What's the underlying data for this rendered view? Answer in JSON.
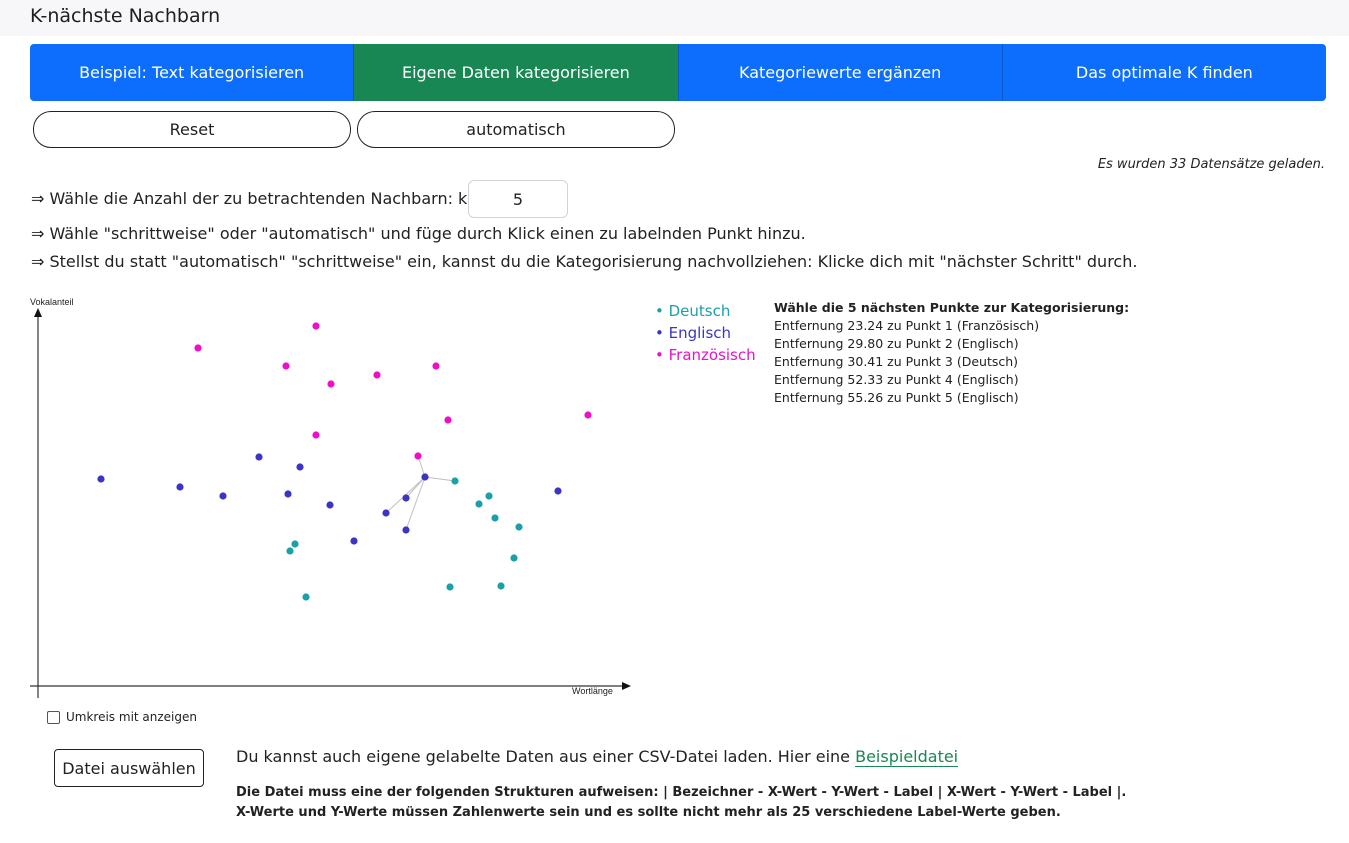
{
  "app": {
    "title": "K-nächste Nachbarn"
  },
  "tabs": [
    {
      "label": "Beispiel: Text kategorisieren"
    },
    {
      "label": "Eigene Daten kategorisieren"
    },
    {
      "label": "Kategoriewerte ergänzen"
    },
    {
      "label": "Das optimale K finden"
    }
  ],
  "buttons": {
    "reset": "Reset",
    "mode": "automatisch"
  },
  "status": "Es wurden 33 Datensätze geladen.",
  "instructions": {
    "k_prompt": "⇒ Wähle die Anzahl der zu betrachtenden Nachbarn: k",
    "k_value": "5",
    "step1": "⇒ Wähle \"schrittweise\" oder \"automatisch\" und füge durch Klick einen zu labelnden Punkt hinzu.",
    "step2": "⇒ Stellst du statt \"automatisch\" \"schrittweise\" ein, kannst du die Kategorisierung nachvollziehen: Klicke dich mit \"nächster Schritt\" durch."
  },
  "colors": {
    "Deutsch": "#1aa0a8",
    "Englisch": "#3a35c4",
    "Französisch": "#ee10c8"
  },
  "chart_data": {
    "type": "scatter",
    "xlabel": "Wortlänge",
    "ylabel": "Vokalanteil",
    "xlim": [
      0,
      600
    ],
    "ylim": [
      0,
      390
    ],
    "series": [
      {
        "name": "Deutsch",
        "color": "#1aa0a8",
        "points": [
          [
            417,
            205
          ],
          [
            441,
            182
          ],
          [
            451,
            190
          ],
          [
            457,
            168
          ],
          [
            481,
            159
          ],
          [
            476,
            128
          ],
          [
            257,
            142
          ],
          [
            252,
            135
          ],
          [
            268,
            89
          ],
          [
            412,
            99
          ],
          [
            463,
            100
          ]
        ]
      },
      {
        "name": "Englisch",
        "color": "#3a35c4",
        "points": [
          [
            63,
            207
          ],
          [
            142,
            199
          ],
          [
            185,
            190
          ],
          [
            221,
            229
          ],
          [
            250,
            192
          ],
          [
            262,
            219
          ],
          [
            292,
            181
          ],
          [
            316,
            145
          ],
          [
            348,
            173
          ],
          [
            368,
            188
          ],
          [
            368,
            156
          ],
          [
            520,
            195
          ]
        ]
      },
      {
        "name": "Französisch",
        "color": "#ee10c8",
        "points": [
          [
            160,
            338
          ],
          [
            248,
            320
          ],
          [
            278,
            360
          ],
          [
            293,
            302
          ],
          [
            339,
            311
          ],
          [
            398,
            320
          ],
          [
            410,
            266
          ],
          [
            278,
            251
          ],
          [
            380,
            230
          ],
          [
            550,
            271
          ]
        ]
      }
    ],
    "query_point": [
      387,
      209
    ],
    "neighbors": [
      [
        380,
        230
      ],
      [
        417,
        205
      ],
      [
        368,
        188
      ],
      [
        368,
        156
      ],
      [
        348,
        173
      ]
    ],
    "legend": [
      "Deutsch",
      "Englisch",
      "Französisch"
    ]
  },
  "results": {
    "heading": "Wähle die 5 nächsten Punkte zur Kategorisierung:",
    "lines": [
      "Entfernung 23.24 zu Punkt 1 (Französisch)",
      "Entfernung 29.80 zu Punkt 2 (Englisch)",
      "Entfernung 30.41 zu Punkt 3 (Deutsch)",
      "Entfernung 52.33 zu Punkt 4 (Englisch)",
      "Entfernung 55.26 zu Punkt 5 (Englisch)"
    ]
  },
  "umkreis_label": "Umkreis mit anzeigen",
  "file": {
    "button": "Datei auswählen",
    "text": "Du kannst auch eigene gelabelte Daten aus einer CSV-Datei laden. Hier eine",
    "link": "Beispieldatei",
    "rule1": "Die Datei muss eine der folgenden Strukturen aufweisen: | Bezeichner - X-Wert - Y-Wert - Label | X-Wert - Y-Wert - Label |.",
    "rule2": "X-Werte und Y-Werte müssen Zahlenwerte sein und es sollte nicht mehr als 25 verschiedene Label-Werte geben."
  }
}
